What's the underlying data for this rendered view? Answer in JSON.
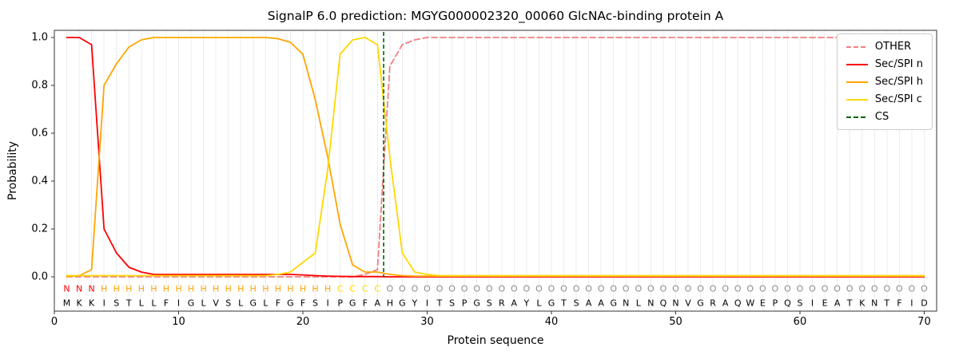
{
  "title": "SignalP 6.0 prediction: MGYG000002320_00060 GlcNAc-binding protein A",
  "axes": {
    "x_label": "Protein sequence",
    "y_label": "Probability",
    "xlim": [
      0,
      71
    ],
    "ylim": [
      -0.143,
      1.03
    ],
    "grid": "vertical-per-residue",
    "x_ticks": [
      {
        "v": 0,
        "label": "0"
      },
      {
        "v": 10,
        "label": "10"
      },
      {
        "v": 20,
        "label": "20"
      },
      {
        "v": 30,
        "label": "30"
      },
      {
        "v": 40,
        "label": "40"
      },
      {
        "v": 50,
        "label": "50"
      },
      {
        "v": 60,
        "label": "60"
      },
      {
        "v": 70,
        "label": "70"
      }
    ],
    "y_ticks": [
      {
        "v": 0.0,
        "label": "0.0"
      },
      {
        "v": 0.2,
        "label": "0.2"
      },
      {
        "v": 0.4,
        "label": "0.4"
      },
      {
        "v": 0.6,
        "label": "0.6"
      },
      {
        "v": 0.8,
        "label": "0.8"
      },
      {
        "v": 1.0,
        "label": "1.0"
      }
    ]
  },
  "legend": {
    "items": [
      {
        "label": "OTHER",
        "color": "#f08080",
        "dashed": true
      },
      {
        "label": "Sec/SPI n",
        "color": "#ff0000",
        "dashed": false
      },
      {
        "label": "Sec/SPI h",
        "color": "#ffa500",
        "dashed": false
      },
      {
        "label": "Sec/SPI c",
        "color": "#ffd700",
        "dashed": false
      },
      {
        "label": "CS",
        "color": "#006400",
        "dashed": true
      }
    ]
  },
  "chart_data": {
    "type": "line",
    "x_start": 1,
    "n_positions": 70,
    "series": [
      {
        "name": "OTHER",
        "color": "#f08080",
        "dashed": true,
        "values": [
          0,
          0,
          0,
          0,
          0,
          0,
          0,
          0,
          0,
          0,
          0,
          0,
          0,
          0,
          0,
          0,
          0,
          0,
          0,
          0,
          0,
          0,
          0,
          0,
          0.01,
          0.03,
          0.88,
          0.97,
          0.99,
          1,
          1,
          1,
          1,
          1,
          1,
          1,
          1,
          1,
          1,
          1,
          1,
          1,
          1,
          1,
          1,
          1,
          1,
          1,
          1,
          1,
          1,
          1,
          1,
          1,
          1,
          1,
          1,
          1,
          1,
          1,
          1,
          1,
          1,
          1,
          1,
          1,
          1,
          1,
          1,
          1
        ]
      },
      {
        "name": "Sec/SPI n",
        "color": "#ff0000",
        "dashed": false,
        "values": [
          1,
          1,
          0.97,
          0.2,
          0.1,
          0.04,
          0.02,
          0.01,
          0.01,
          0.01,
          0.01,
          0.01,
          0.01,
          0.01,
          0.01,
          0.01,
          0.01,
          0.01,
          0.01,
          0.008,
          0.005,
          0.003,
          0.002,
          0.001,
          0.001,
          0.001,
          0,
          0,
          0,
          0,
          0,
          0,
          0,
          0,
          0,
          0,
          0,
          0,
          0,
          0,
          0,
          0,
          0,
          0,
          0,
          0,
          0,
          0,
          0,
          0,
          0,
          0,
          0,
          0,
          0,
          0,
          0,
          0,
          0,
          0,
          0,
          0,
          0,
          0,
          0,
          0,
          0,
          0,
          0,
          0
        ]
      },
      {
        "name": "Sec/SPI h",
        "color": "#ffa500",
        "dashed": false,
        "values": [
          0.001,
          0.005,
          0.03,
          0.8,
          0.89,
          0.96,
          0.99,
          1,
          1,
          1,
          1,
          1,
          1,
          1,
          1,
          1,
          1,
          0.995,
          0.98,
          0.93,
          0.74,
          0.5,
          0.22,
          0.05,
          0.02,
          0.02,
          0.01,
          0.005,
          0.003,
          0.003,
          0.003,
          0.003,
          0.003,
          0.003,
          0.003,
          0.003,
          0.003,
          0.003,
          0.003,
          0.003,
          0.003,
          0.003,
          0.003,
          0.003,
          0.003,
          0.003,
          0.003,
          0.003,
          0.003,
          0.003,
          0.003,
          0.003,
          0.003,
          0.003,
          0.003,
          0.003,
          0.003,
          0.003,
          0.003,
          0.003,
          0.003,
          0.003,
          0.003,
          0.003,
          0.003,
          0.003,
          0.003,
          0.003,
          0.003,
          0.003
        ]
      },
      {
        "name": "Sec/SPI c",
        "color": "#ffd700",
        "dashed": false,
        "values": [
          0.005,
          0.005,
          0.005,
          0.005,
          0.005,
          0.005,
          0.005,
          0.005,
          0.005,
          0.005,
          0.005,
          0.005,
          0.005,
          0.005,
          0.005,
          0.005,
          0.005,
          0.01,
          0.02,
          0.06,
          0.1,
          0.45,
          0.93,
          0.99,
          1,
          0.97,
          0.5,
          0.1,
          0.02,
          0.01,
          0.005,
          0.005,
          0.005,
          0.005,
          0.005,
          0.005,
          0.005,
          0.005,
          0.005,
          0.005,
          0.005,
          0.005,
          0.005,
          0.005,
          0.005,
          0.005,
          0.005,
          0.005,
          0.005,
          0.005,
          0.005,
          0.005,
          0.005,
          0.005,
          0.005,
          0.005,
          0.005,
          0.005,
          0.005,
          0.005,
          0.005,
          0.005,
          0.005,
          0.005,
          0.005,
          0.005,
          0.005,
          0.005,
          0.005,
          0.005
        ]
      }
    ],
    "cs_line": {
      "name": "CS",
      "color": "#006400",
      "position": 26.5,
      "dashed": true
    },
    "sequence": "MKKISTLLFIGLVSLGLFGFSIPGFAHGYITSPGSRAYLGTSAAGNLNQNVGRAQWEPQSIEATKNTFID",
    "region_labels": "NNNHHHHHHHHHHHHHHHHHHHCCCCOOOOOOOOOOOOOOOOOOOOOOOOOOOOOOOOOOOOOOOOOOOO",
    "region_colors": {
      "N": "#ff0000",
      "H": "#ffa500",
      "C": "#ffd700",
      "O": "#8c8c8c"
    },
    "sequence_color": "#000000"
  }
}
